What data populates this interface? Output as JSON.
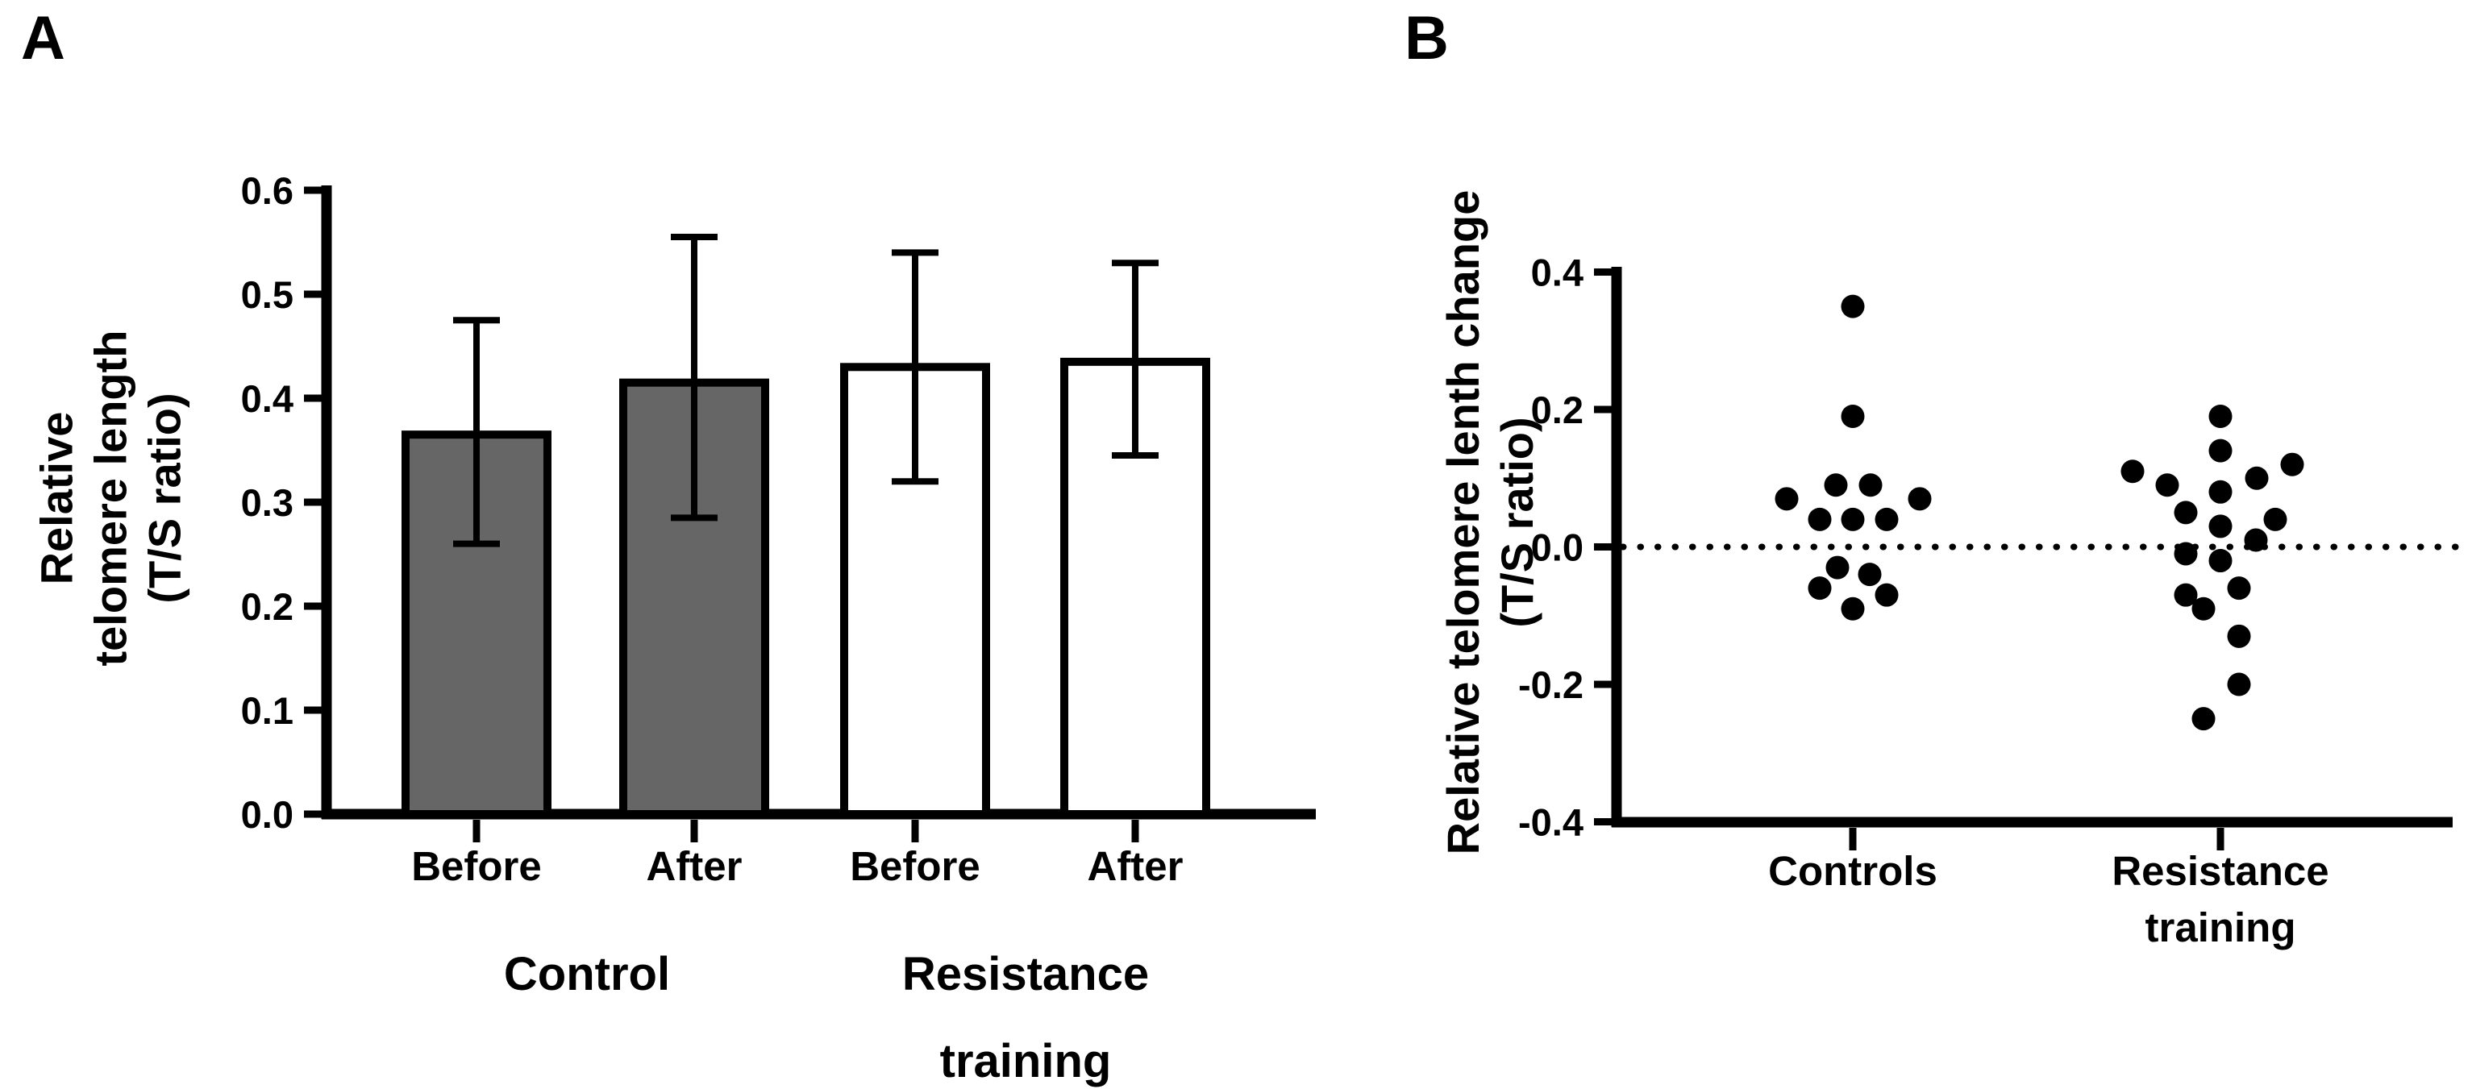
{
  "panels": {
    "a_label": "A",
    "b_label": "B"
  },
  "chart_data": [
    {
      "panel": "A",
      "type": "bar",
      "title": "",
      "ylabel_lines": [
        "Relative",
        "telomere length",
        "(T/S ratio)"
      ],
      "ylim": [
        0.0,
        0.6
      ],
      "yticks": [
        0.0,
        0.1,
        0.2,
        0.3,
        0.4,
        0.5,
        0.6
      ],
      "ytick_labels": [
        "0.0",
        "0.1",
        "0.2",
        "0.3",
        "0.4",
        "0.5",
        "0.6"
      ],
      "categories": [
        "Before",
        "After",
        "Before",
        "After"
      ],
      "group_labels": [
        [
          "Control"
        ],
        [
          "Resistance",
          "training"
        ]
      ],
      "grid": false,
      "legend": "none",
      "bar_border_color": "#000000",
      "error_bar_color": "#000000",
      "bars": [
        {
          "group": "Control",
          "category": "Before",
          "value": 0.365,
          "error_low": 0.26,
          "error_high": 0.475,
          "fill": "#666666"
        },
        {
          "group": "Control",
          "category": "After",
          "value": 0.415,
          "error_low": 0.285,
          "error_high": 0.555,
          "fill": "#666666"
        },
        {
          "group": "Resistance training",
          "category": "Before",
          "value": 0.43,
          "error_low": 0.32,
          "error_high": 0.54,
          "fill": "#ffffff"
        },
        {
          "group": "Resistance training",
          "category": "After",
          "value": 0.435,
          "error_low": 0.345,
          "error_high": 0.53,
          "fill": "#ffffff"
        }
      ]
    },
    {
      "panel": "B",
      "type": "scatter",
      "title": "",
      "ylabel_lines": [
        "Relative telomere lenth change",
        "(T/S ratio)"
      ],
      "ylim": [
        -0.4,
        0.4
      ],
      "yticks": [
        0.4,
        0.2,
        0.0,
        -0.2,
        -0.4
      ],
      "ytick_labels": [
        "0.4",
        "0.2",
        "0.0",
        "-0.2",
        "-0.4"
      ],
      "zero_line_style": "dotted",
      "point_color": "#000000",
      "grid": false,
      "legend": "none",
      "groups": [
        {
          "label_lines": [
            "Controls"
          ],
          "points": [
            {
              "y": 0.35,
              "dx": 0
            },
            {
              "y": 0.19,
              "dx": 0
            },
            {
              "y": 0.09,
              "dx": -21
            },
            {
              "y": 0.09,
              "dx": 22
            },
            {
              "y": 0.07,
              "dx": -82
            },
            {
              "y": 0.07,
              "dx": 83
            },
            {
              "y": 0.04,
              "dx": -41
            },
            {
              "y": 0.04,
              "dx": 0
            },
            {
              "y": 0.04,
              "dx": 42
            },
            {
              "y": -0.03,
              "dx": -19
            },
            {
              "y": -0.04,
              "dx": 21
            },
            {
              "y": -0.06,
              "dx": -41
            },
            {
              "y": -0.07,
              "dx": 42
            },
            {
              "y": -0.09,
              "dx": 0
            }
          ]
        },
        {
          "label_lines": [
            "Resistance",
            "training"
          ],
          "points": [
            {
              "y": 0.19,
              "dx": 0
            },
            {
              "y": 0.14,
              "dx": 0
            },
            {
              "y": 0.12,
              "dx": 89
            },
            {
              "y": 0.11,
              "dx": -109
            },
            {
              "y": 0.1,
              "dx": 45
            },
            {
              "y": 0.09,
              "dx": -66
            },
            {
              "y": 0.08,
              "dx": 0
            },
            {
              "y": 0.05,
              "dx": -43
            },
            {
              "y": 0.04,
              "dx": 68
            },
            {
              "y": 0.03,
              "dx": 0
            },
            {
              "y": 0.01,
              "dx": 44
            },
            {
              "y": -0.01,
              "dx": -43
            },
            {
              "y": -0.02,
              "dx": 0
            },
            {
              "y": -0.06,
              "dx": 23
            },
            {
              "y": -0.07,
              "dx": -43
            },
            {
              "y": -0.09,
              "dx": -21
            },
            {
              "y": -0.13,
              "dx": 23
            },
            {
              "y": -0.2,
              "dx": 23
            },
            {
              "y": -0.25,
              "dx": -21
            }
          ]
        }
      ]
    }
  ]
}
